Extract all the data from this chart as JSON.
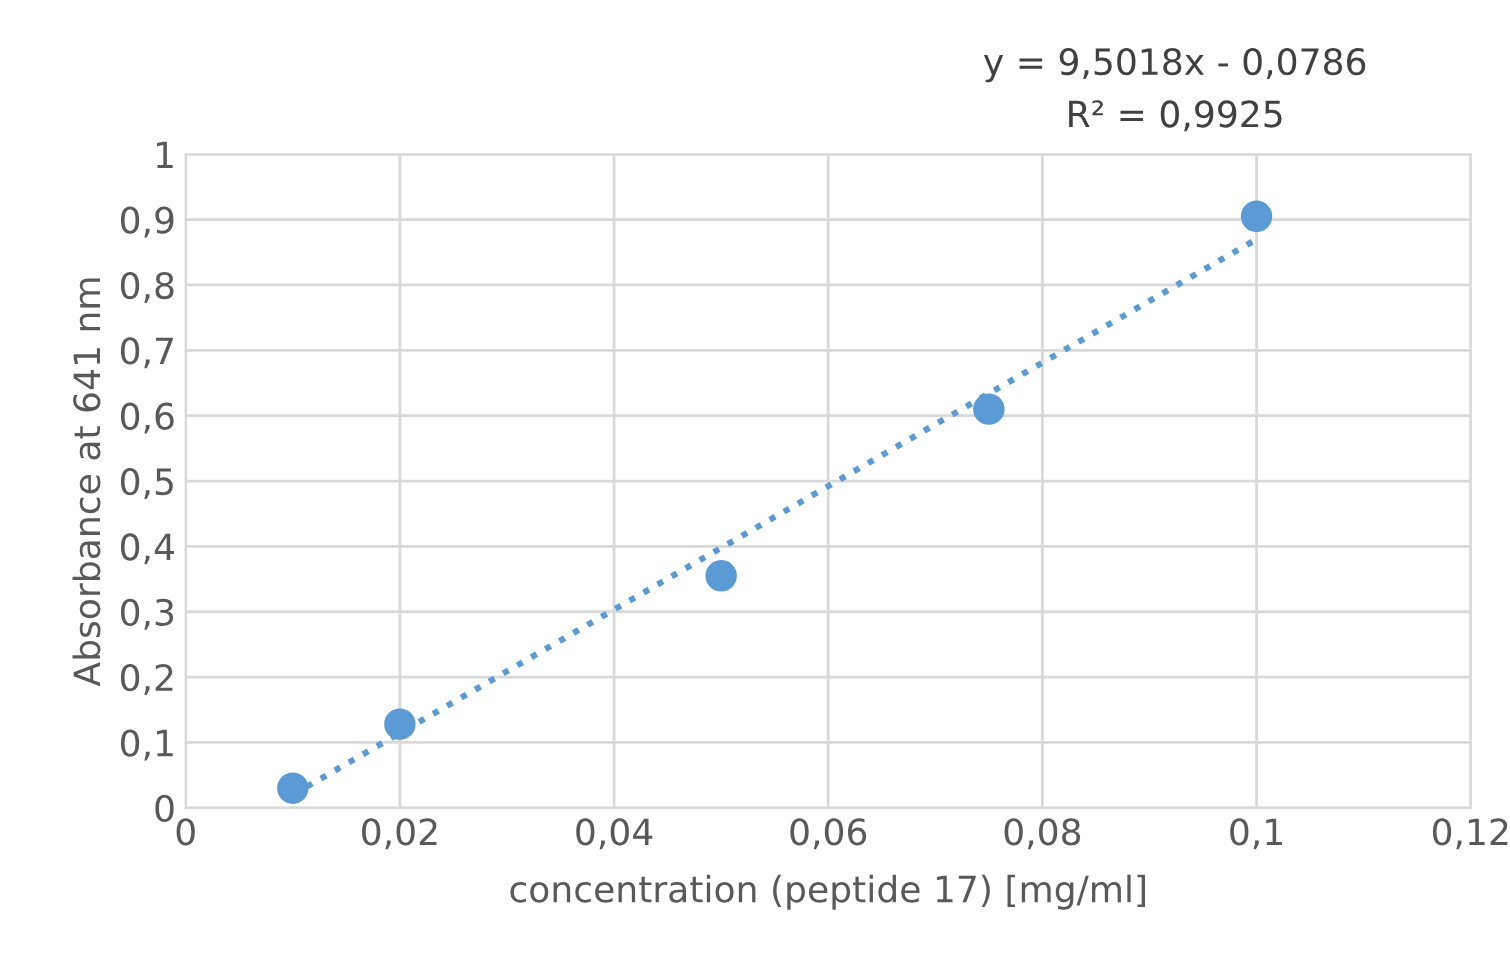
{
  "chart_data": {
    "type": "scatter",
    "xlabel": "concentration (peptide 17) [mg/ml]",
    "ylabel": "Absorbance at 641 nm",
    "series": [
      {
        "color": "#5b9bd5",
        "x": [
          0.01,
          0.02,
          0.05,
          0.075,
          0.1
        ],
        "values": [
          0.03,
          0.128,
          0.355,
          0.61,
          0.905
        ],
        "marker": "circle"
      },
      {
        "type": "line",
        "color": "#5b9bd5",
        "x": [
          0.01,
          0.1
        ],
        "values": [
          0.02,
          0.87
        ],
        "line_style": "dotted",
        "marker": "none"
      }
    ],
    "xlim": [
      0,
      0.12
    ],
    "xticks": [
      0,
      {
        "value": 0.02,
        "label": "0,02"
      },
      {
        "value": 0.04,
        "label": "0,04"
      },
      {
        "value": 0.06,
        "label": "0,06"
      },
      {
        "value": 0.08,
        "label": "0,08"
      },
      {
        "value": 0.1,
        "label": "0,1"
      },
      {
        "value": 0.12,
        "label": "0,12"
      }
    ],
    "ylim": [
      0,
      1
    ],
    "yticks": [
      0,
      {
        "value": 0.1,
        "label": "0,1"
      },
      {
        "value": 0.2,
        "label": "0,2"
      },
      {
        "value": 0.3,
        "label": "0,3"
      },
      {
        "value": 0.4,
        "label": "0,4"
      },
      {
        "value": 0.5,
        "label": "0,5"
      },
      {
        "value": 0.6,
        "label": "0,6"
      },
      {
        "value": 0.7,
        "label": "0,7"
      },
      {
        "value": 0.8,
        "label": "0,8"
      },
      {
        "value": 0.9,
        "label": "0,9"
      },
      1
    ],
    "grid": true,
    "annotations": [
      "y = 9,5018x - 0,0786",
      "R² = 0,9925"
    ]
  }
}
